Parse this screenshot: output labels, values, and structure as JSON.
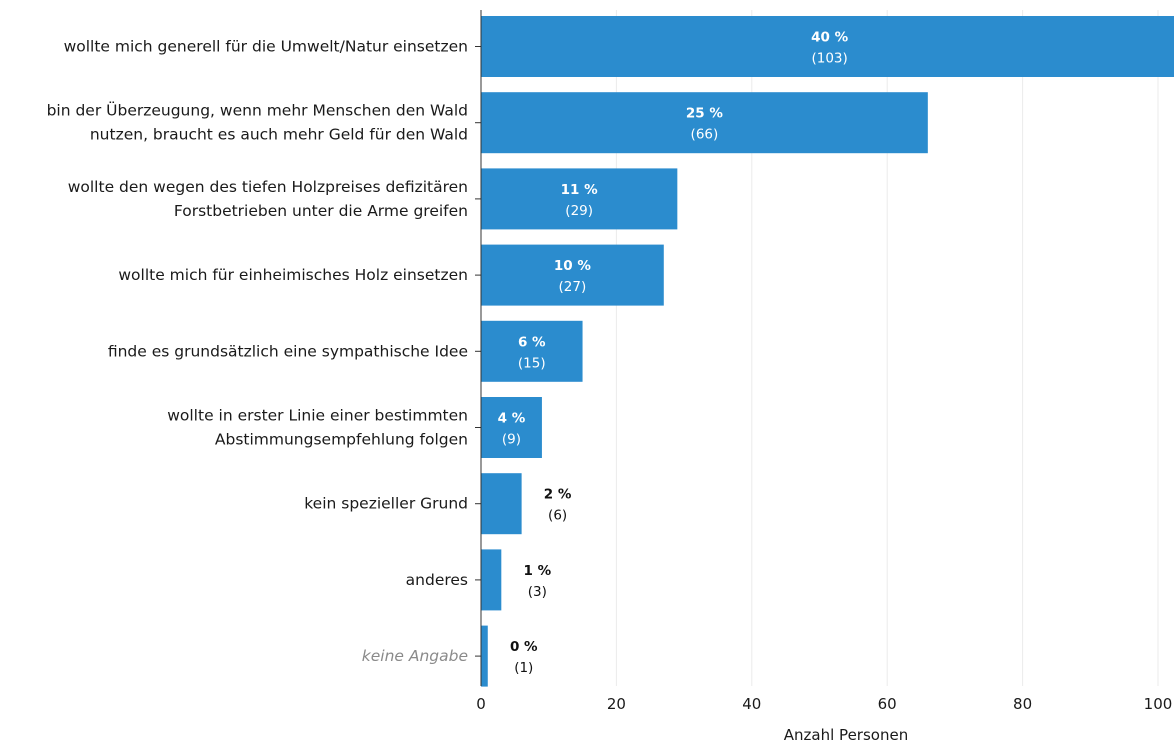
{
  "chart_data": {
    "type": "bar",
    "orientation": "horizontal",
    "title": "",
    "xlabel": "Anzahl Personen",
    "ylabel": "",
    "xlim": [
      0,
      100
    ],
    "xticks": [
      0,
      20,
      40,
      60,
      80,
      100
    ],
    "grid": true,
    "bar_color": "#2b8cce",
    "categories": [
      {
        "label": [
          "wollte mich generell für die Umwelt/Natur einsetzen"
        ],
        "value": 103,
        "percent": "40 %",
        "count": "(103)",
        "muted": false
      },
      {
        "label": [
          "bin der Überzeugung, wenn mehr Menschen den Wald",
          "nutzen, braucht es auch mehr Geld für den Wald"
        ],
        "value": 66,
        "percent": "25 %",
        "count": "(66)",
        "muted": false
      },
      {
        "label": [
          "wollte den wegen des tiefen Holzpreises defizitären",
          "Forstbetrieben unter die Arme greifen"
        ],
        "value": 29,
        "percent": "11 %",
        "count": "(29)",
        "muted": false
      },
      {
        "label": [
          "wollte mich für einheimisches Holz einsetzen"
        ],
        "value": 27,
        "percent": "10 %",
        "count": "(27)",
        "muted": false
      },
      {
        "label": [
          "finde es grundsätzlich eine sympathische Idee"
        ],
        "value": 15,
        "percent": "6 %",
        "count": "(15)",
        "muted": false
      },
      {
        "label": [
          "wollte in erster Linie einer bestimmten",
          "Abstimmungsempfehlung folgen"
        ],
        "value": 9,
        "percent": "4 %",
        "count": "(9)",
        "muted": false
      },
      {
        "label": [
          "kein spezieller Grund"
        ],
        "value": 6,
        "percent": "2 %",
        "count": "(6)",
        "muted": false
      },
      {
        "label": [
          "anderes"
        ],
        "value": 3,
        "percent": "1 %",
        "count": "(3)",
        "muted": false
      },
      {
        "label": [
          "keine Angabe"
        ],
        "value": 1,
        "percent": "0 %",
        "count": "(1)",
        "muted": true
      }
    ]
  }
}
